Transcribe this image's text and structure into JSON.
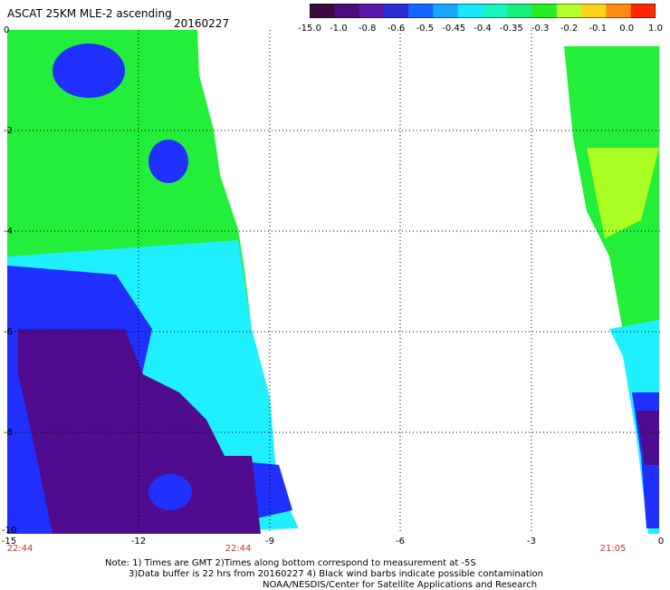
{
  "title": "ASCAT 25KM MLE-2 ascending",
  "date": "20160227",
  "colorbar": {
    "labels": [
      "-15.0",
      "-1.0",
      "-0.8",
      "-0.6",
      "-0.5",
      "-0.45",
      "-0.4",
      "-0.35",
      "-0.3",
      "-0.2",
      "-0.1",
      "0.0",
      "1.0"
    ],
    "colors": [
      "#3b0a3f",
      "#4b0d7a",
      "#5a17a8",
      "#2b2bd6",
      "#1466ff",
      "#17a8ff",
      "#1ae6ff",
      "#18f5c0",
      "#17f07a",
      "#25ee25",
      "#b6ff2a",
      "#ffd21a",
      "#ff8a12",
      "#ff2a00"
    ]
  },
  "axes": {
    "y_ticks": [
      "0",
      "-2",
      "-4",
      "-6",
      "-8",
      "-10"
    ],
    "x_ticks": [
      "-15",
      "-12",
      "-9",
      "-6",
      "-3",
      "0"
    ],
    "x_range": [
      -15,
      0
    ],
    "y_range": [
      0,
      -10
    ]
  },
  "pass_times": [
    "22:44",
    "22:44",
    "21:05"
  ],
  "notes": [
    "Note: 1) Times are GMT 2)Times along bottom correspond to measurement at -5S",
    "3)Data buffer is 22 hrs from 20160227 4) Black wind barbs indicate possible contamination",
    "NOAA/NESDIS/Center for Satellite Applications and Research"
  ],
  "swath_colors": {
    "green": "#23ef3a",
    "cyan": "#1ff0ff",
    "blue": "#1f30ff",
    "purple": "#4f0c8f",
    "lime": "#aaff22"
  }
}
